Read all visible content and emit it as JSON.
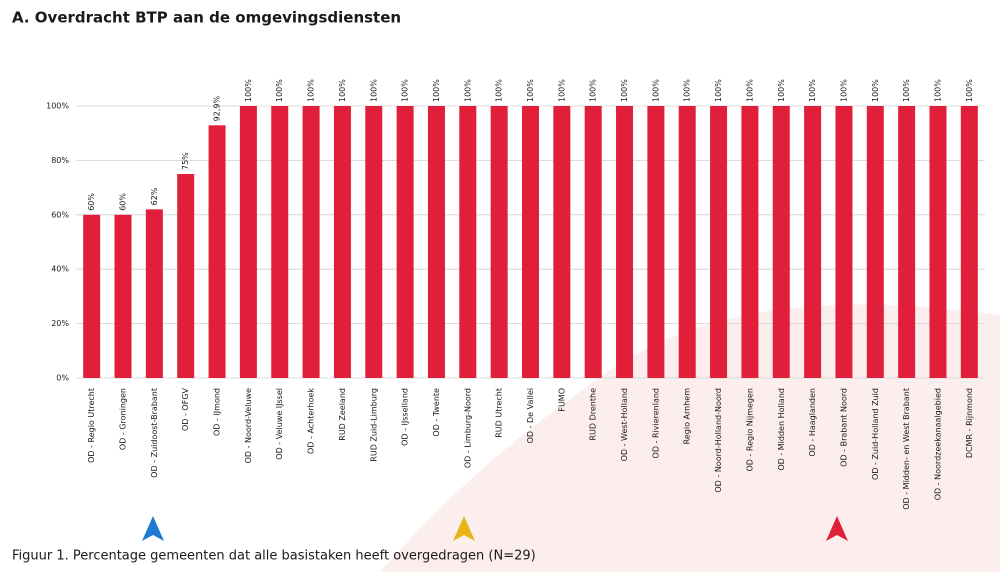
{
  "chart_data": {
    "type": "bar",
    "title": "A. Overdracht BTP aan de omgevingsdiensten",
    "caption": "Figuur 1. Percentage gemeenten dat alle basistaken heeft overgedragen (N=29)",
    "categories": [
      "OD - Regio Utrecht",
      "OD - Groningen",
      "OD - Zuidoost-Brabant",
      "OD - OFGV",
      "OD - IJmond",
      "OD - Noord-Veluwe",
      "OD - Veluwe IJssel",
      "OD - Achterhoek",
      "RUD Zeeland",
      "RUD Zuid-Limburg",
      "OD - IJsselland",
      "OD - Twente",
      "OD - Limburg-Noord",
      "RUD Utrecht",
      "OD - De Vallei",
      "FUMO",
      "RUD Drenthe",
      "OD - West-Holland",
      "OD - Rivierenland",
      "Regio Arnhem",
      "OD - Noord-Holland-Noord",
      "OD - Regio Nijmegen",
      "OD - Midden Holland",
      "OD - Haaglanden",
      "OD - Brabant Noord",
      "OD - Zuid-Holland Zuid",
      "OD - Midden- en West Brabant",
      "OD - Noordzeekanaalgebied",
      "DCMR - Rijnmond"
    ],
    "values": [
      60,
      60,
      62,
      75,
      92.9,
      100,
      100,
      100,
      100,
      100,
      100,
      100,
      100,
      100,
      100,
      100,
      100,
      100,
      100,
      100,
      100,
      100,
      100,
      100,
      100,
      100,
      100,
      100,
      100
    ],
    "value_labels": [
      "60%",
      "60%",
      "62%",
      "75%",
      "92,9%",
      "100%",
      "100%",
      "100%",
      "100%",
      "100%",
      "100%",
      "100%",
      "100%",
      "100%",
      "100%",
      "100%",
      "100%",
      "100%",
      "100%",
      "100%",
      "100%",
      "100%",
      "100%",
      "100%",
      "100%",
      "100%",
      "100%",
      "100%",
      "100%"
    ],
    "color": "#e21f3a",
    "ylim": [
      0,
      100
    ],
    "yticks": [
      {
        "value": 0,
        "label": "0%"
      },
      {
        "value": 20,
        "label": "20%"
      },
      {
        "value": 40,
        "label": "40%"
      },
      {
        "value": 60,
        "label": "60%"
      },
      {
        "value": 80,
        "label": "80%"
      },
      {
        "value": 100,
        "label": "100%"
      }
    ],
    "grid": true
  }
}
